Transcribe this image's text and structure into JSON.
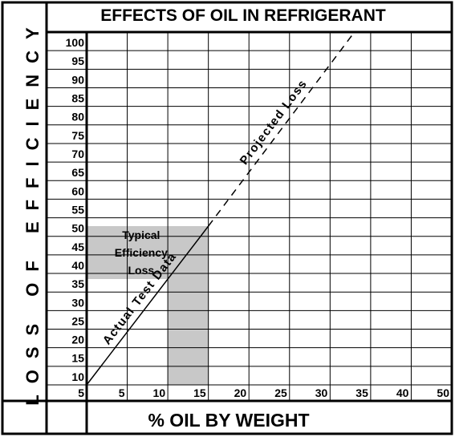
{
  "chart_data": {
    "type": "line",
    "title": "EFFECTS OF OIL IN REFRIGERANT",
    "xlabel": "% OIL BY WEIGHT",
    "ylabel": "LOSS OF EFFICIENCY",
    "x_tick_labels": [
      "5",
      "5",
      "10",
      "15",
      "20",
      "25",
      "30",
      "35",
      "40",
      "50"
    ],
    "y_tick_labels": [
      "10",
      "15",
      "20",
      "25",
      "30",
      "35",
      "40",
      "45",
      "50",
      "55",
      "60",
      "65",
      "70",
      "75",
      "80",
      "85",
      "90",
      "95",
      "100"
    ],
    "grid": true,
    "series": [
      {
        "name": "Actual Test Data",
        "style": "solid",
        "x": [
          0,
          15
        ],
        "y": [
          0,
          45
        ]
      },
      {
        "name": "Projected Loss",
        "style": "dashed",
        "x": [
          15,
          33
        ],
        "y": [
          45,
          100
        ]
      }
    ],
    "highlight": {
      "label_lines": [
        "Typical",
        "Efficiency",
        "Loss"
      ],
      "x_band": [
        10,
        15
      ],
      "y_band": [
        30,
        45
      ],
      "color": "#c8c8c8"
    },
    "colors": {
      "frame": "#000000",
      "grid": "#000000",
      "background": "#ffffff",
      "shade": "#c8c8c8"
    }
  }
}
